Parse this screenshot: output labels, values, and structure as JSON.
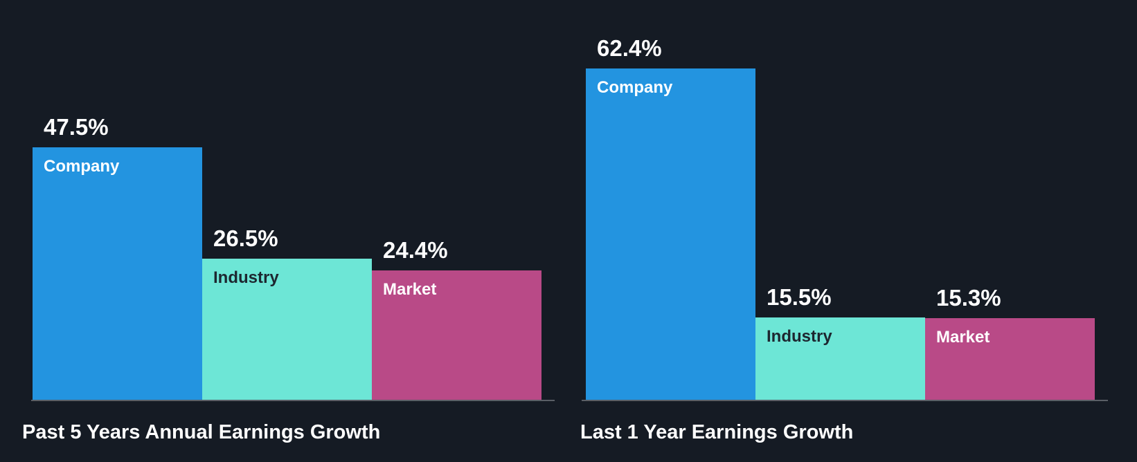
{
  "colors": {
    "background": "#151b24",
    "company": "#2394e0",
    "industry": "#6de6d6",
    "market": "#b94a87",
    "baseline": "#5a5f66",
    "label_light": "#ffffff",
    "label_dark": "#1d2730"
  },
  "chart_data": [
    {
      "type": "bar",
      "title": "Past 5 Years Annual Earnings Growth",
      "categories": [
        "Company",
        "Industry",
        "Market"
      ],
      "values": [
        47.5,
        26.5,
        24.4
      ],
      "value_labels": [
        "47.5%",
        "26.5%",
        "24.4%"
      ],
      "unit": "%",
      "xlabel": "",
      "ylabel": "",
      "grid": false,
      "legend": "none"
    },
    {
      "type": "bar",
      "title": "Last 1 Year Earnings Growth",
      "categories": [
        "Company",
        "Industry",
        "Market"
      ],
      "values": [
        62.4,
        15.5,
        15.3
      ],
      "value_labels": [
        "62.4%",
        "15.5%",
        "15.3%"
      ],
      "unit": "%",
      "xlabel": "",
      "ylabel": "",
      "grid": false,
      "legend": "none"
    }
  ]
}
